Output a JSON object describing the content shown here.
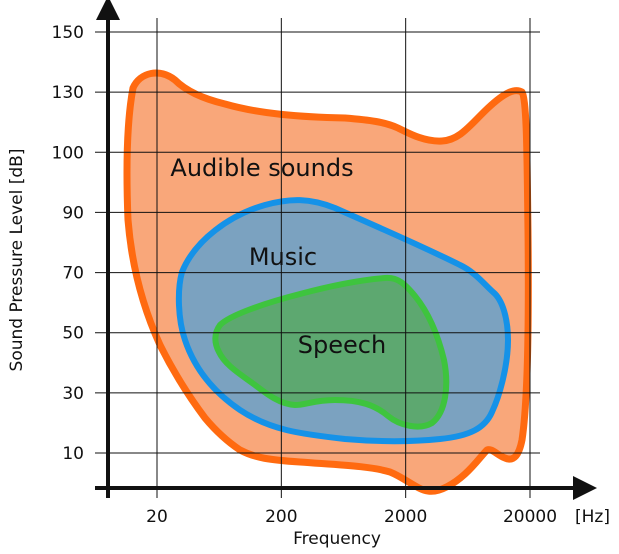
{
  "chart_data": {
    "type": "area",
    "title": "",
    "xlabel": "Frequency",
    "ylabel": "Sound Pressure Level [dB]",
    "x_unit": "[Hz]",
    "x_scale": "log",
    "x_ticks": [
      20,
      200,
      2000,
      20000
    ],
    "x_tick_labels": [
      "20",
      "200",
      "2000",
      "20000"
    ],
    "y_ticks": [
      10,
      30,
      50,
      70,
      90,
      100,
      130,
      150
    ],
    "y_tick_labels": [
      "10",
      "30",
      "50",
      "70",
      "90",
      "100",
      "130",
      "150"
    ],
    "grid": true,
    "regions": [
      {
        "name": "Audible sounds",
        "fill": "#f9a77a",
        "stroke": "#ff6a10",
        "x_range_hz": [
          16,
          22000
        ],
        "y_range_db": [
          0,
          135
        ]
      },
      {
        "name": "Music",
        "fill": "#7ba2c0",
        "stroke": "#1592e8",
        "x_range_hz": [
          30,
          15000
        ],
        "y_range_db": [
          13,
          95
        ]
      },
      {
        "name": "Speech",
        "fill": "#5da870",
        "stroke": "#3ec43e",
        "x_range_hz": [
          100,
          4000
        ],
        "y_range_db": [
          18,
          68
        ]
      }
    ]
  }
}
